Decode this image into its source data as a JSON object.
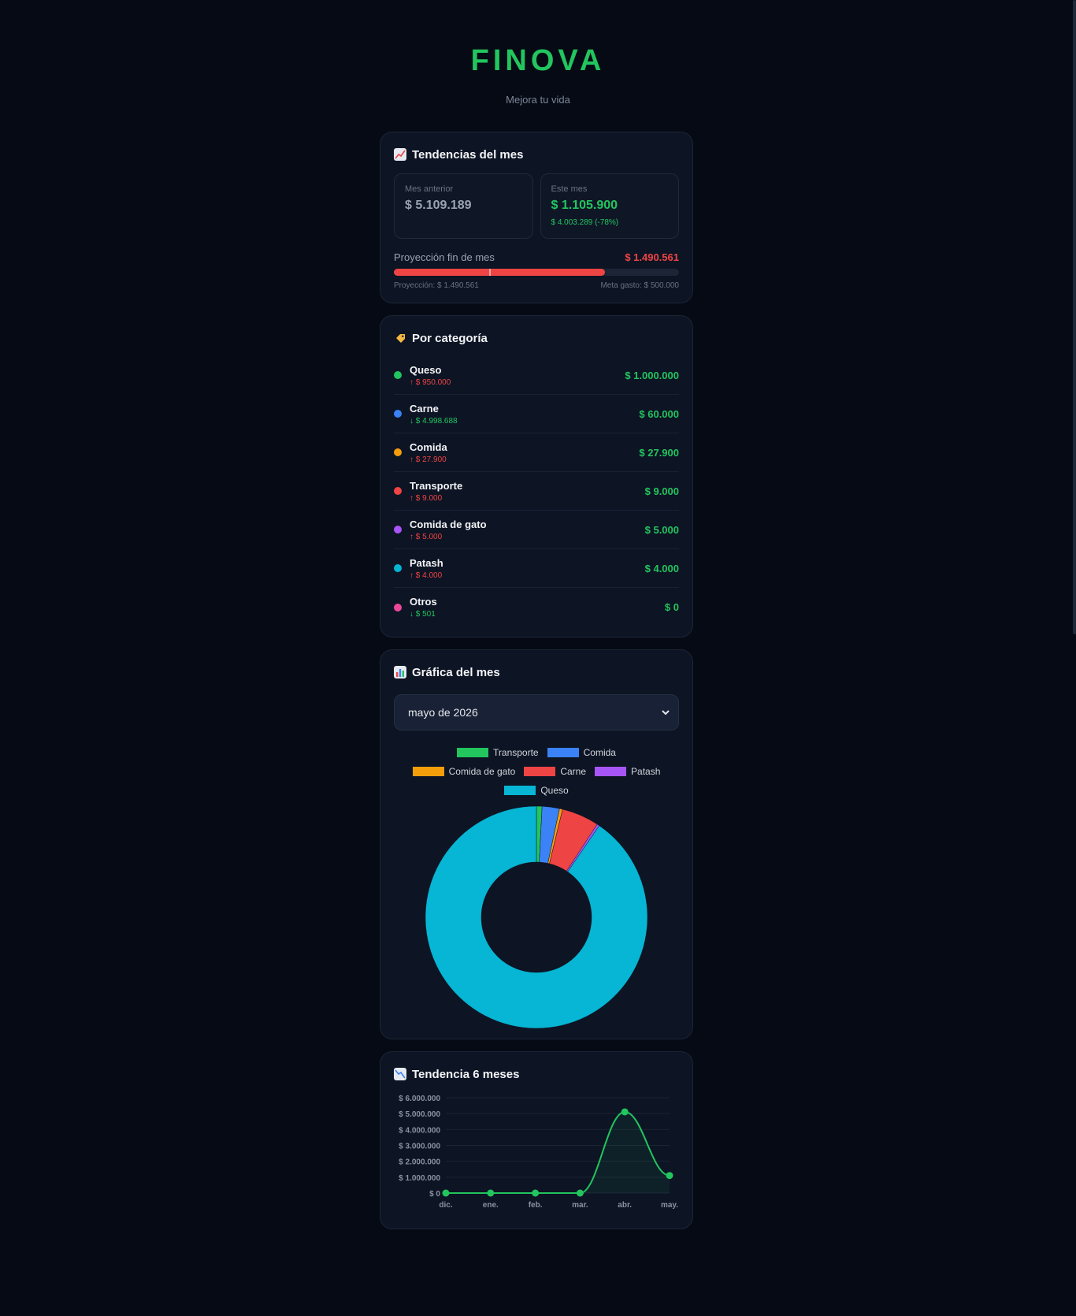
{
  "app": {
    "brand": "FINOVA",
    "tagline": "Mejora tu vida"
  },
  "trends": {
    "icon": "chart-increasing-icon",
    "title": "Tendencias del mes",
    "previous_label": "Mes anterior",
    "previous_value": "$ 5.109.189",
    "current_label": "Este mes",
    "current_value": "$ 1.105.900",
    "current_diff": "$ 4.003.289 (-78%)",
    "projection_label": "Proyección fin de mes",
    "projection_value": "$ 1.490.561",
    "projection_fraction": 0.74,
    "goal_fraction": 0.335,
    "projection_caption": "Proyección: $ 1.490.561",
    "goal_caption": "Meta gasto: $ 500.000",
    "colors": {
      "fill": "#ef4444",
      "positive": "#22c55e"
    }
  },
  "categories": {
    "icon": "label-tag-icon",
    "title": "Por categoría",
    "items": [
      {
        "name": "Queso",
        "delta": "↑ $ 950.000",
        "direction": "up",
        "amount": "$ 1.000.000",
        "color": "#22c55e"
      },
      {
        "name": "Carne",
        "delta": "↓ $ 4.998.688",
        "direction": "down",
        "amount": "$ 60.000",
        "color": "#3b82f6"
      },
      {
        "name": "Comida",
        "delta": "↑ $ 27.900",
        "direction": "up",
        "amount": "$ 27.900",
        "color": "#f59e0b"
      },
      {
        "name": "Transporte",
        "delta": "↑ $ 9.000",
        "direction": "up",
        "amount": "$ 9.000",
        "color": "#ef4444"
      },
      {
        "name": "Comida de gato",
        "delta": "↑ $ 5.000",
        "direction": "up",
        "amount": "$ 5.000",
        "color": "#a855f7"
      },
      {
        "name": "Patash",
        "delta": "↑ $ 4.000",
        "direction": "up",
        "amount": "$ 4.000",
        "color": "#06b6d4"
      },
      {
        "name": "Otros",
        "delta": "↓ $ 501",
        "direction": "down",
        "amount": "$ 0",
        "color": "#ec4899"
      }
    ]
  },
  "month_chart": {
    "icon": "bar-chart-icon",
    "title": "Gráfica del mes",
    "select": {
      "value": "mayo de 2026",
      "icon": "chevron-down-icon"
    }
  },
  "six_month": {
    "icon": "chart-decreasing-icon",
    "title": "Tendencia 6 meses"
  },
  "chart_data": [
    {
      "type": "pie",
      "variant": "doughnut",
      "legend_position": "top",
      "categories": [
        "Transporte",
        "Comida",
        "Comida de gato",
        "Carne",
        "Patash",
        "Queso"
      ],
      "values": [
        9000,
        27900,
        5000,
        60000,
        4000,
        1000000
      ],
      "colors": [
        "#22c55e",
        "#3b82f6",
        "#f59e0b",
        "#ef4444",
        "#a855f7",
        "#06b6d4"
      ]
    },
    {
      "type": "line",
      "categories": [
        "dic.",
        "ene.",
        "feb.",
        "mar.",
        "abr.",
        "may."
      ],
      "values": [
        0,
        0,
        0,
        0,
        5109189,
        1105900
      ],
      "ylim": [
        0,
        6000000
      ],
      "yticks": [
        {
          "value": 0,
          "label": "$ 0"
        },
        {
          "value": 1000000,
          "label": "$ 1.000.000"
        },
        {
          "value": 2000000,
          "label": "$ 2.000.000"
        },
        {
          "value": 3000000,
          "label": "$ 3.000.000"
        },
        {
          "value": 4000000,
          "label": "$ 4.000.000"
        },
        {
          "value": 5000000,
          "label": "$ 5.000.000"
        },
        {
          "value": 6000000,
          "label": "$ 6.000.000"
        }
      ],
      "grid": true,
      "color": "#22c55e"
    }
  ]
}
